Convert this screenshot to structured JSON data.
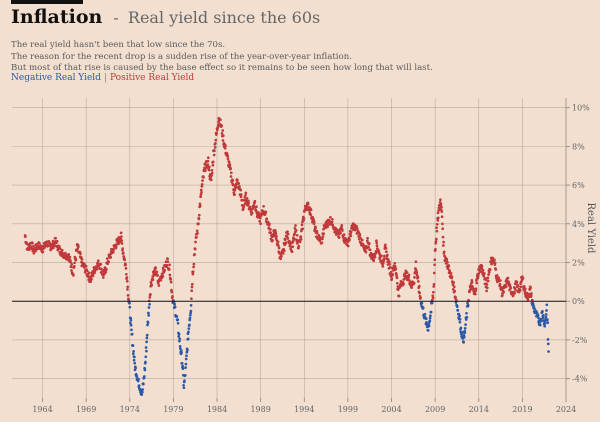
{
  "header": {
    "title": "Inflation",
    "separator": "-",
    "subtitle": "Real yield since the 60s"
  },
  "description": [
    "The real yield hasn't been that low since the 70s.",
    "The reason for the recent drop is a sudden rise of the year-over-year inflation.",
    "But most of that rise is caused by the base effect so it remains to be seen how long that will last."
  ],
  "legend": {
    "negative": "Negative Real Yield",
    "separator": "|",
    "positive": "Positive Real Yield"
  },
  "colors": {
    "background": "#f2dfd0",
    "negative": "#2b58a8",
    "positive": "#c0393b",
    "grid": "#8a8078",
    "zero_line": "#111111"
  },
  "chart_data": {
    "type": "scatter",
    "title": "Real yield since the 60s",
    "ylabel": "Real Yield",
    "xlim": [
      1960.5,
      2024
    ],
    "ylim": [
      -5,
      10.5
    ],
    "x_ticks": [
      1964,
      1969,
      1974,
      1979,
      1984,
      1989,
      1994,
      1999,
      2004,
      2009,
      2014,
      2019,
      2024
    ],
    "x_tick_labels": [
      "1964",
      "1969",
      "1974",
      "1979",
      "1984",
      "1989",
      "1994",
      "1999",
      "2004",
      "2009",
      "2014",
      "2019",
      "2024"
    ],
    "y_ticks": [
      -4,
      -2,
      0,
      2,
      4,
      6,
      8,
      10
    ],
    "y_tick_labels": [
      "-4%",
      "-2%",
      "0%",
      "2%",
      "4%",
      "6%",
      "8%",
      "10%"
    ],
    "grid": true,
    "series_points": [
      [
        1962.0,
        3.4
      ],
      [
        1962.3,
        2.7
      ],
      [
        1962.7,
        3.0
      ],
      [
        1963.0,
        2.6
      ],
      [
        1963.5,
        2.9
      ],
      [
        1964.0,
        2.7
      ],
      [
        1964.5,
        3.0
      ],
      [
        1965.0,
        2.8
      ],
      [
        1965.5,
        3.1
      ],
      [
        1966.0,
        2.6
      ],
      [
        1966.5,
        2.4
      ],
      [
        1967.0,
        2.3
      ],
      [
        1967.5,
        1.5
      ],
      [
        1968.0,
        2.8
      ],
      [
        1968.5,
        2.0
      ],
      [
        1969.0,
        1.6
      ],
      [
        1969.5,
        1.1
      ],
      [
        1970.0,
        1.7
      ],
      [
        1970.5,
        2.0
      ],
      [
        1971.0,
        1.3
      ],
      [
        1971.5,
        2.1
      ],
      [
        1972.0,
        2.6
      ],
      [
        1972.5,
        3.0
      ],
      [
        1973.0,
        3.3
      ],
      [
        1973.3,
        2.4
      ],
      [
        1973.6,
        1.6
      ],
      [
        1973.8,
        0.5
      ],
      [
        1974.0,
        -0.5
      ],
      [
        1974.2,
        -1.6
      ],
      [
        1974.4,
        -2.5
      ],
      [
        1974.6,
        -3.4
      ],
      [
        1974.8,
        -3.8
      ],
      [
        1975.0,
        -4.2
      ],
      [
        1975.2,
        -4.5
      ],
      [
        1975.4,
        -4.8
      ],
      [
        1975.6,
        -4.1
      ],
      [
        1975.8,
        -3.1
      ],
      [
        1976.0,
        -1.6
      ],
      [
        1976.2,
        -0.3
      ],
      [
        1976.4,
        0.8
      ],
      [
        1976.7,
        1.4
      ],
      [
        1977.0,
        1.6
      ],
      [
        1977.3,
        0.9
      ],
      [
        1977.6,
        1.3
      ],
      [
        1978.0,
        1.7
      ],
      [
        1978.3,
        2.1
      ],
      [
        1978.6,
        1.6
      ],
      [
        1978.8,
        0.6
      ],
      [
        1979.0,
        -0.1
      ],
      [
        1979.2,
        -0.4
      ],
      [
        1979.5,
        -1.2
      ],
      [
        1979.8,
        -2.4
      ],
      [
        1980.0,
        -3.1
      ],
      [
        1980.2,
        -4.4
      ],
      [
        1980.4,
        -3.6
      ],
      [
        1980.6,
        -2.3
      ],
      [
        1980.8,
        -1.2
      ],
      [
        1981.0,
        -0.3
      ],
      [
        1981.2,
        1.4
      ],
      [
        1981.5,
        2.9
      ],
      [
        1981.8,
        3.8
      ],
      [
        1982.0,
        4.8
      ],
      [
        1982.3,
        6.0
      ],
      [
        1982.6,
        6.9
      ],
      [
        1983.0,
        7.2
      ],
      [
        1983.3,
        6.1
      ],
      [
        1983.6,
        7.6
      ],
      [
        1984.0,
        8.8
      ],
      [
        1984.2,
        9.5
      ],
      [
        1984.5,
        9.0
      ],
      [
        1984.8,
        8.2
      ],
      [
        1985.0,
        7.8
      ],
      [
        1985.3,
        7.2
      ],
      [
        1985.6,
        6.6
      ],
      [
        1986.0,
        5.6
      ],
      [
        1986.3,
        6.2
      ],
      [
        1986.6,
        5.8
      ],
      [
        1987.0,
        4.8
      ],
      [
        1987.3,
        5.4
      ],
      [
        1987.6,
        5.0
      ],
      [
        1988.0,
        4.6
      ],
      [
        1988.3,
        5.2
      ],
      [
        1988.6,
        4.5
      ],
      [
        1989.0,
        4.2
      ],
      [
        1989.3,
        4.8
      ],
      [
        1989.6,
        4.4
      ],
      [
        1990.0,
        3.8
      ],
      [
        1990.3,
        3.2
      ],
      [
        1990.6,
        3.6
      ],
      [
        1991.0,
        2.9
      ],
      [
        1991.3,
        2.2
      ],
      [
        1991.6,
        2.6
      ],
      [
        1992.0,
        3.5
      ],
      [
        1992.3,
        3.1
      ],
      [
        1992.6,
        2.7
      ],
      [
        1993.0,
        3.7
      ],
      [
        1993.3,
        2.9
      ],
      [
        1993.6,
        3.2
      ],
      [
        1994.0,
        4.6
      ],
      [
        1994.3,
        5.0
      ],
      [
        1994.6,
        4.8
      ],
      [
        1995.0,
        4.2
      ],
      [
        1995.3,
        3.6
      ],
      [
        1995.6,
        3.3
      ],
      [
        1996.0,
        3.1
      ],
      [
        1996.3,
        3.8
      ],
      [
        1996.6,
        4.0
      ],
      [
        1997.0,
        4.2
      ],
      [
        1997.3,
        4.0
      ],
      [
        1997.6,
        3.6
      ],
      [
        1998.0,
        3.4
      ],
      [
        1998.3,
        3.8
      ],
      [
        1998.6,
        3.2
      ],
      [
        1999.0,
        3.0
      ],
      [
        1999.3,
        3.5
      ],
      [
        1999.6,
        3.9
      ],
      [
        2000.0,
        3.7
      ],
      [
        2000.3,
        3.4
      ],
      [
        2000.6,
        3.0
      ],
      [
        2001.0,
        2.5
      ],
      [
        2001.3,
        3.2
      ],
      [
        2001.6,
        2.4
      ],
      [
        2002.0,
        2.2
      ],
      [
        2002.3,
        3.0
      ],
      [
        2002.6,
        2.4
      ],
      [
        2003.0,
        2.0
      ],
      [
        2003.3,
        2.7
      ],
      [
        2003.6,
        2.1
      ],
      [
        2004.0,
        1.3
      ],
      [
        2004.3,
        1.9
      ],
      [
        2004.6,
        1.4
      ],
      [
        2004.8,
        0.3
      ],
      [
        2005.0,
        0.8
      ],
      [
        2005.3,
        1.0
      ],
      [
        2005.6,
        1.4
      ],
      [
        2006.0,
        1.2
      ],
      [
        2006.3,
        0.8
      ],
      [
        2006.6,
        1.1
      ],
      [
        2006.8,
        1.9
      ],
      [
        2007.0,
        1.1
      ],
      [
        2007.3,
        0.2
      ],
      [
        2007.6,
        -0.4
      ],
      [
        2007.9,
        -1.0
      ],
      [
        2008.2,
        -1.4
      ],
      [
        2008.5,
        -0.6
      ],
      [
        2008.8,
        0.4
      ],
      [
        2009.0,
        2.6
      ],
      [
        2009.2,
        3.8
      ],
      [
        2009.4,
        4.6
      ],
      [
        2009.6,
        5.2
      ],
      [
        2009.8,
        4.6
      ],
      [
        2010.0,
        2.4
      ],
      [
        2010.3,
        2.1
      ],
      [
        2010.6,
        1.6
      ],
      [
        2010.9,
        1.2
      ],
      [
        2011.2,
        0.6
      ],
      [
        2011.5,
        -0.2
      ],
      [
        2011.8,
        -0.9
      ],
      [
        2012.0,
        -1.6
      ],
      [
        2012.3,
        -2.0
      ],
      [
        2012.6,
        -0.8
      ],
      [
        2012.9,
        0.4
      ],
      [
        2013.2,
        0.9
      ],
      [
        2013.5,
        0.3
      ],
      [
        2013.8,
        1.1
      ],
      [
        2014.0,
        1.6
      ],
      [
        2014.3,
        1.8
      ],
      [
        2014.6,
        1.3
      ],
      [
        2014.9,
        0.7
      ],
      [
        2015.2,
        1.6
      ],
      [
        2015.5,
        2.2
      ],
      [
        2015.8,
        2.0
      ],
      [
        2016.1,
        1.2
      ],
      [
        2016.4,
        1.0
      ],
      [
        2016.7,
        0.4
      ],
      [
        2017.0,
        0.7
      ],
      [
        2017.3,
        1.1
      ],
      [
        2017.6,
        0.6
      ],
      [
        2018.0,
        0.4
      ],
      [
        2018.3,
        0.9
      ],
      [
        2018.6,
        0.5
      ],
      [
        2019.0,
        1.2
      ],
      [
        2019.3,
        0.5
      ],
      [
        2019.6,
        0.2
      ],
      [
        2019.9,
        0.6
      ],
      [
        2020.2,
        -0.2
      ],
      [
        2020.5,
        -0.6
      ],
      [
        2020.8,
        -0.9
      ],
      [
        2021.0,
        -1.1
      ],
      [
        2021.3,
        -0.6
      ],
      [
        2021.6,
        -1.2
      ],
      [
        2021.8,
        -0.3
      ],
      [
        2022.0,
        -2.6
      ]
    ]
  }
}
